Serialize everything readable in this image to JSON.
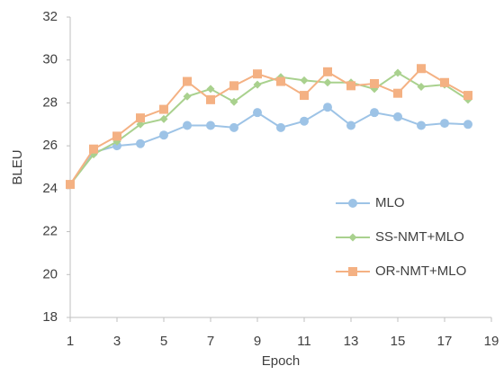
{
  "chart_data": {
    "type": "line",
    "x_label": "Epoch",
    "y_label": "BLEU",
    "x": [
      1,
      2,
      3,
      4,
      5,
      6,
      7,
      8,
      9,
      10,
      11,
      12,
      13,
      14,
      15,
      16,
      17,
      18
    ],
    "series": [
      {
        "name": "MLO",
        "color": "#9dc3e6",
        "marker": "circle",
        "values": [
          24.2,
          25.7,
          26.0,
          26.1,
          26.5,
          26.95,
          26.95,
          26.85,
          27.55,
          26.85,
          27.15,
          27.8,
          26.95,
          27.55,
          27.35,
          26.95,
          27.05,
          27.0
        ]
      },
      {
        "name": "SS-NMT+MLO",
        "color": "#a9d18e",
        "marker": "diamond",
        "values": [
          24.2,
          25.6,
          26.2,
          27.0,
          27.25,
          28.3,
          28.65,
          28.05,
          28.85,
          29.2,
          29.05,
          28.95,
          28.95,
          28.65,
          29.4,
          28.75,
          28.85,
          28.15
        ]
      },
      {
        "name": "OR-NMT+MLO",
        "color": "#f4b183",
        "marker": "square",
        "values": [
          24.2,
          25.85,
          26.45,
          27.3,
          27.7,
          29.0,
          28.15,
          28.8,
          29.35,
          29.0,
          28.35,
          29.45,
          28.8,
          28.9,
          28.45,
          29.6,
          28.95,
          28.35
        ]
      }
    ],
    "xlim": [
      1,
      19
    ],
    "xticks": [
      1,
      3,
      5,
      7,
      9,
      11,
      13,
      15,
      17,
      19
    ],
    "ylim": [
      18,
      32
    ],
    "yticks": [
      18,
      20,
      22,
      24,
      26,
      28,
      30,
      32
    ],
    "grid": false,
    "legend": "right"
  }
}
